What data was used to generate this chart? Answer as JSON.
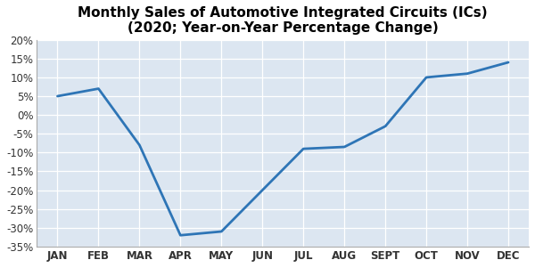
{
  "title_line1": "Monthly Sales of Automotive Integrated Circuits (ICs)",
  "title_line2": "(2020; Year-on-Year Percentage Change)",
  "months": [
    "JAN",
    "FEB",
    "MAR",
    "APR",
    "MAY",
    "JUN",
    "JUL",
    "AUG",
    "SEPT",
    "OCT",
    "NOV",
    "DEC"
  ],
  "values": [
    5,
    7,
    -8,
    -32,
    -31,
    -20,
    -9,
    -8.5,
    -3,
    10,
    11,
    14
  ],
  "line_color": "#2e75b6",
  "line_width": 2.0,
  "ylim": [
    -35,
    20
  ],
  "yticks": [
    -35,
    -30,
    -25,
    -20,
    -15,
    -10,
    -5,
    0,
    5,
    10,
    15,
    20
  ],
  "ytick_labels": [
    "-35%",
    "-30%",
    "-25%",
    "-20%",
    "-15%",
    "-10%",
    "-5%",
    "0%",
    "5%",
    "10%",
    "15%",
    "20%"
  ],
  "fig_bg_color": "#ffffff",
  "plot_bg_color": "#dce6f1",
  "grid_color": "#ffffff",
  "title_fontsize": 11,
  "tick_fontsize": 8.5
}
